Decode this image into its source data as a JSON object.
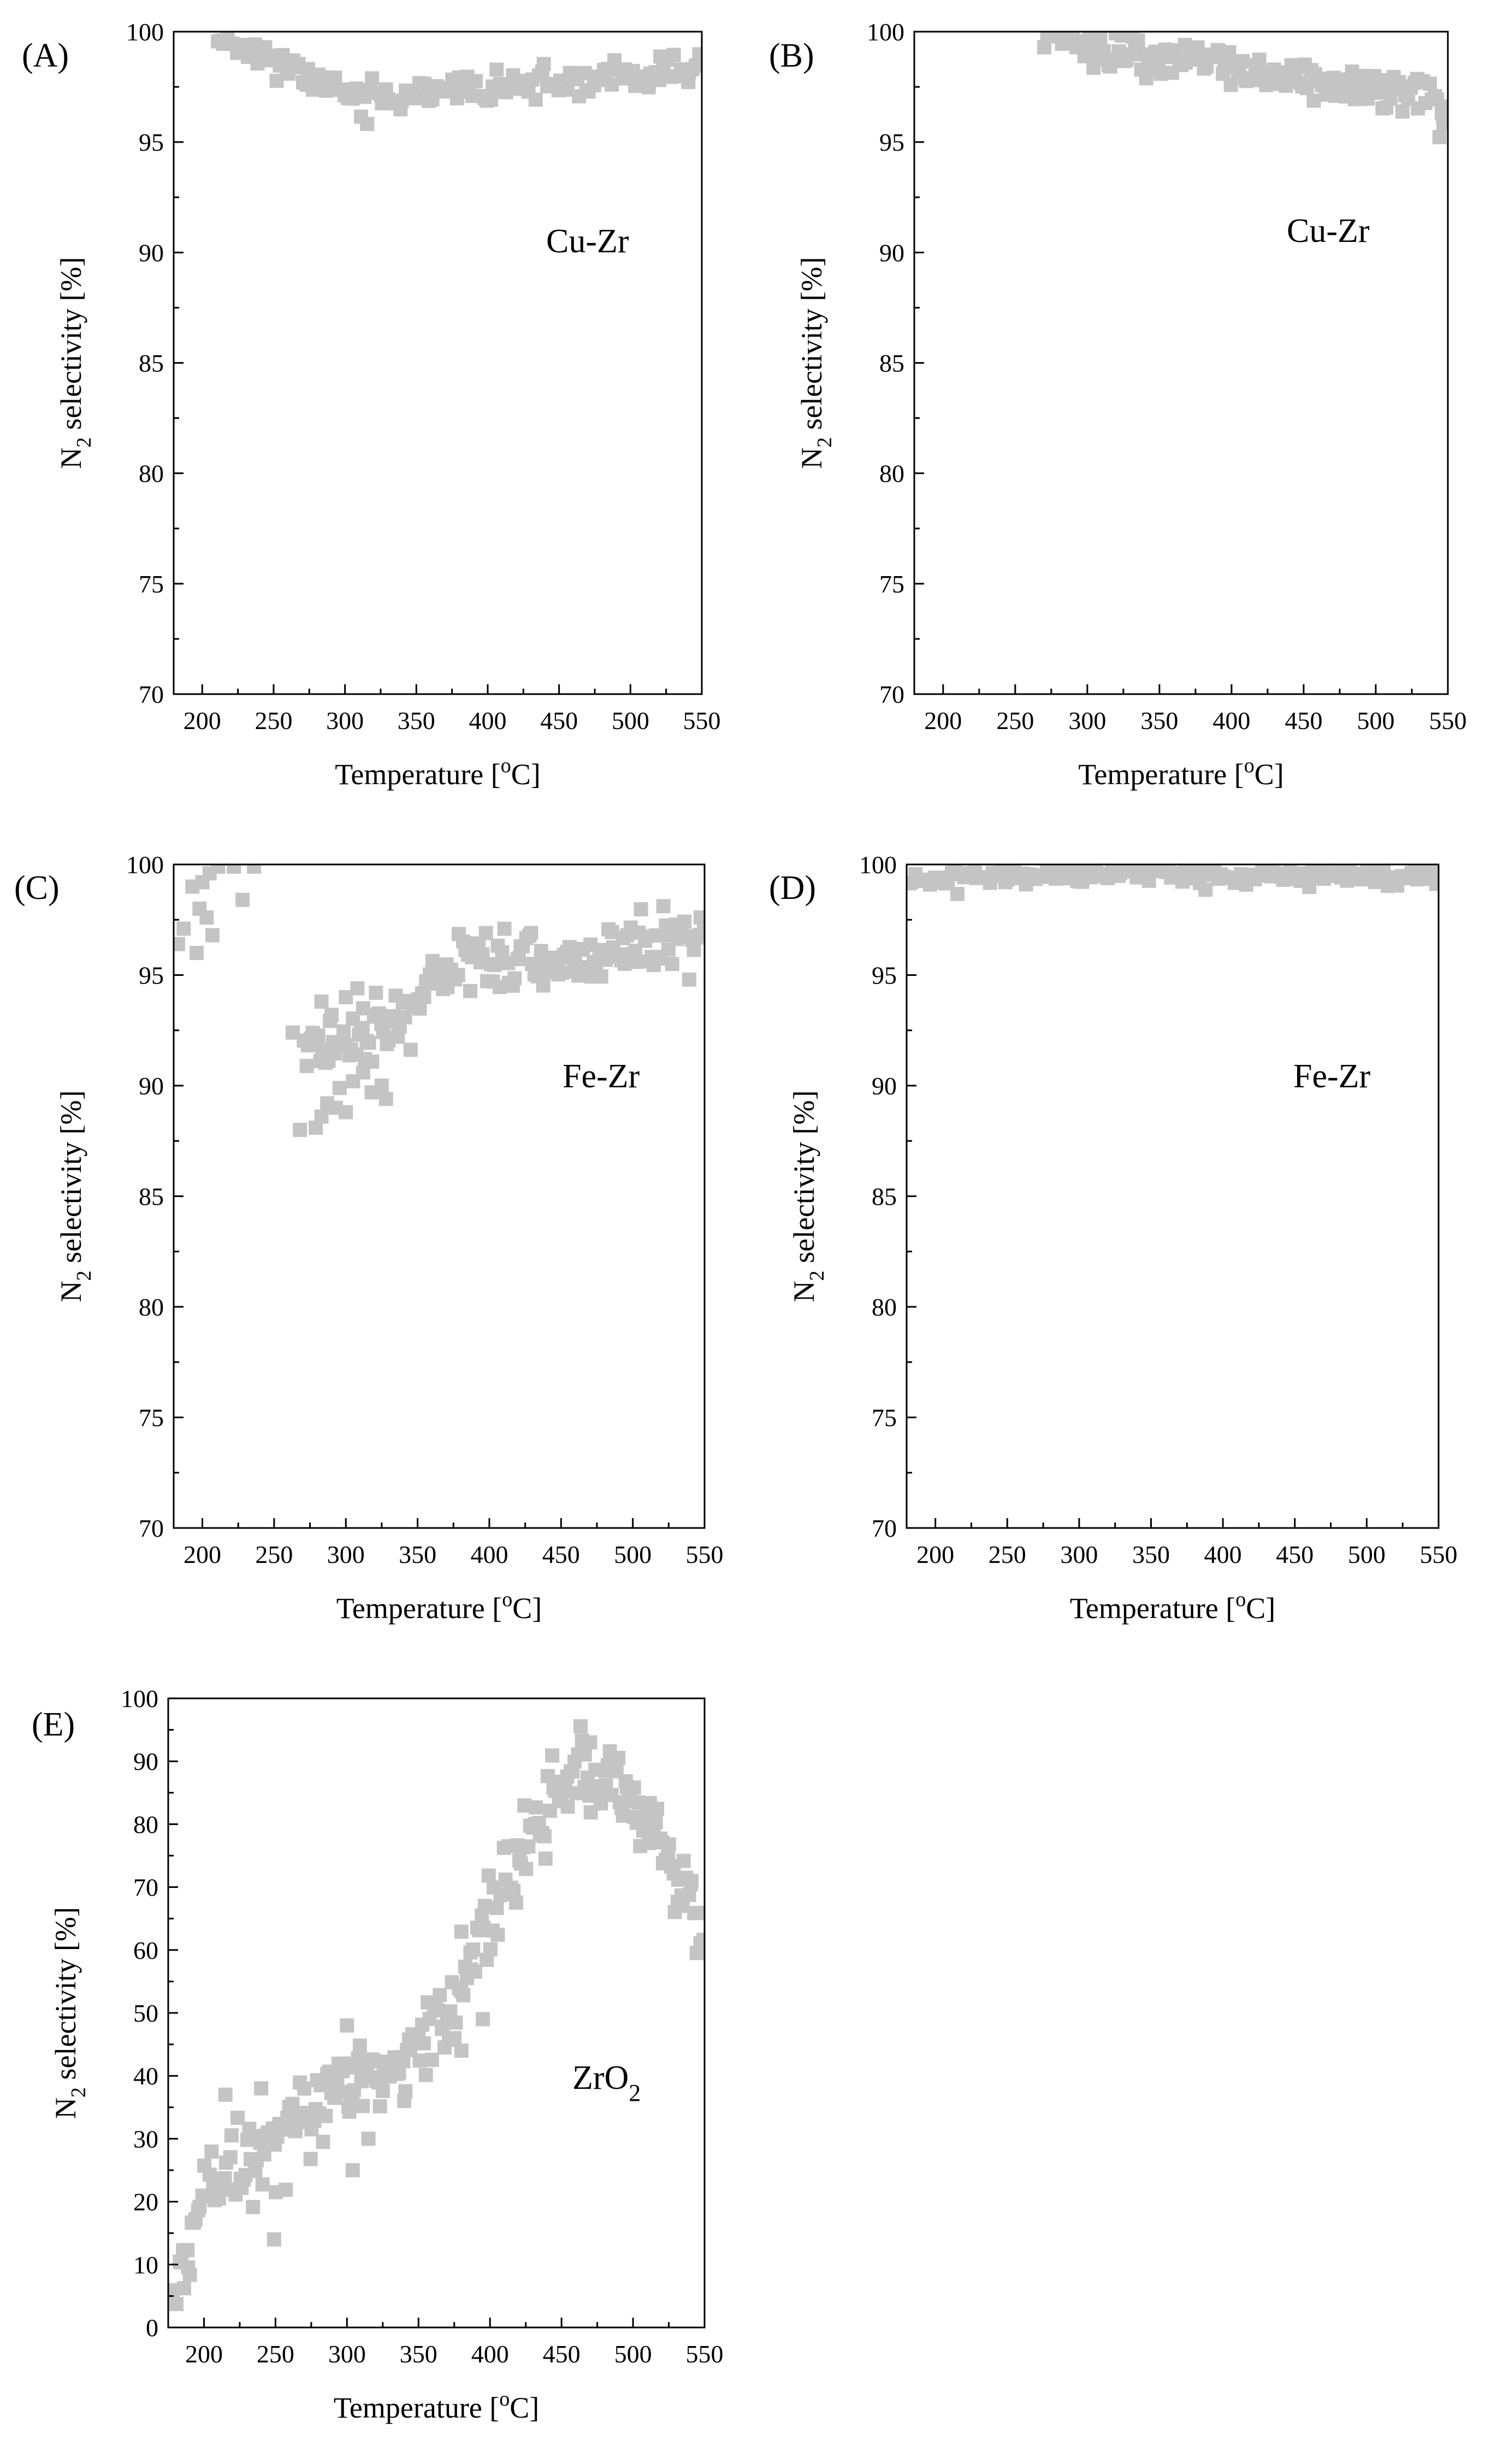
{
  "figure": {
    "background": "#ffffff",
    "marker_color": "#c4c4c4"
  },
  "chart_data": [
    {
      "panel_label": "(A)",
      "type": "scatter",
      "annotation": "Cu-Zr",
      "xlabel": {
        "main": "Temperature [",
        "sup": "o",
        "tail": "C]"
      },
      "ylabel": {
        "main": "N",
        "sub": "2",
        "tail": " selectivity [%]"
      },
      "xlim": [
        180,
        550
      ],
      "ylim": [
        70,
        100
      ],
      "xticks": [
        200,
        250,
        300,
        350,
        400,
        450,
        500,
        550
      ],
      "yticks": [
        70,
        75,
        80,
        85,
        90,
        95,
        100
      ],
      "xtick_labels": [
        "200",
        "250",
        "300",
        "350",
        "400",
        "450",
        "500",
        "550"
      ],
      "ytick_labels": [
        "70",
        "75",
        "80",
        "85",
        "90",
        "95",
        "100"
      ],
      "series": [
        {
          "name": "Cu-Zr",
          "curve": [
            [
              210,
              99.9
            ],
            [
              240,
              99.0
            ],
            [
              270,
              98.0
            ],
            [
              300,
              97.3
            ],
            [
              330,
              97.0
            ],
            [
              350,
              97.0
            ],
            [
              380,
              97.4
            ],
            [
              420,
              97.5
            ],
            [
              460,
              97.7
            ],
            [
              500,
              97.9
            ],
            [
              550,
              98.4
            ]
          ],
          "spread": 0.35,
          "count": 150,
          "seed": 11
        }
      ]
    },
    {
      "panel_label": "(B)",
      "type": "scatter",
      "annotation": "Cu-Zr",
      "xlabel": {
        "main": "Temperature [",
        "sup": "o",
        "tail": "C]"
      },
      "ylabel": {
        "main": "N",
        "sub": "2",
        "tail": " selectivity [%]"
      },
      "xlim": [
        180,
        550
      ],
      "ylim": [
        70,
        100
      ],
      "xticks": [
        200,
        250,
        300,
        350,
        400,
        450,
        500,
        550
      ],
      "yticks": [
        70,
        75,
        80,
        85,
        90,
        95,
        100
      ],
      "xtick_labels": [
        "200",
        "250",
        "300",
        "350",
        "400",
        "450",
        "500",
        "550"
      ],
      "ytick_labels": [
        "70",
        "75",
        "80",
        "85",
        "90",
        "95",
        "100"
      ],
      "series": [
        {
          "name": "Cu-Zr",
          "curve": [
            [
              270,
              100.0
            ],
            [
              300,
              99.3
            ],
            [
              340,
              98.9
            ],
            [
              380,
              98.6
            ],
            [
              420,
              98.2
            ],
            [
              460,
              97.8
            ],
            [
              500,
              97.4
            ],
            [
              530,
              96.9
            ],
            [
              550,
              96.4
            ]
          ],
          "spread": 0.45,
          "count": 160,
          "seed": 23
        }
      ]
    },
    {
      "panel_label": "(C)",
      "type": "scatter",
      "annotation": "Fe-Zr",
      "xlabel": {
        "main": "Temperature [",
        "sup": "o",
        "tail": "C]"
      },
      "ylabel": {
        "main": "N",
        "sub": "2",
        "tail": " selectivity [%]"
      },
      "xlim": [
        180,
        550
      ],
      "ylim": [
        70,
        100
      ],
      "xticks": [
        200,
        250,
        300,
        350,
        400,
        450,
        500,
        550
      ],
      "yticks": [
        70,
        75,
        80,
        85,
        90,
        95,
        100
      ],
      "xtick_labels": [
        "200",
        "250",
        "300",
        "350",
        "400",
        "450",
        "500",
        "550"
      ],
      "ytick_labels": [
        "70",
        "75",
        "80",
        "85",
        "90",
        "95",
        "100"
      ],
      "series": [
        {
          "name": "Fe-Zr",
          "curve": [
            [
              270,
              92.0
            ],
            [
              300,
              91.6
            ],
            [
              330,
              92.6
            ],
            [
              350,
              93.8
            ],
            [
              370,
              95.0
            ],
            [
              380,
              96.0
            ],
            [
              420,
              96.0
            ],
            [
              460,
              95.8
            ],
            [
              500,
              95.9
            ],
            [
              530,
              96.5
            ],
            [
              550,
              97.0
            ]
          ],
          "spread": 0.7,
          "count": 170,
          "seed": 37
        }
      ],
      "extra_points": [
        [
          183,
          96.4
        ],
        [
          187,
          97.1
        ],
        [
          193,
          99.0
        ],
        [
          196,
          96.0
        ],
        [
          198,
          98.0
        ],
        [
          200,
          99.2
        ],
        [
          203,
          97.6
        ],
        [
          205,
          99.6
        ],
        [
          207,
          96.8
        ],
        [
          211,
          99.9
        ],
        [
          222,
          99.9
        ],
        [
          228,
          98.4
        ],
        [
          236,
          99.9
        ],
        [
          263,
          92.4
        ],
        [
          268,
          88.0
        ],
        [
          279,
          88.1
        ],
        [
          283,
          88.6
        ],
        [
          287,
          89.2
        ],
        [
          293,
          89.0
        ],
        [
          300,
          88.8
        ],
        [
          305,
          90.2
        ],
        [
          312,
          90.6
        ],
        [
          318,
          89.7
        ],
        [
          321,
          94.2
        ],
        [
          325,
          90.0
        ],
        [
          328,
          89.4
        ],
        [
          283,
          93.8
        ],
        [
          290,
          93.2
        ],
        [
          300,
          94.0
        ],
        [
          308,
          94.4
        ],
        [
          312,
          93.5
        ]
      ]
    },
    {
      "panel_label": "(D)",
      "type": "scatter",
      "annotation": "Fe-Zr",
      "xlabel": {
        "main": "Temperature [",
        "sup": "o",
        "tail": "C]"
      },
      "ylabel": {
        "main": "N",
        "sub": "2",
        "tail": " selectivity [%]"
      },
      "xlim": [
        180,
        550
      ],
      "ylim": [
        70,
        100
      ],
      "xticks": [
        200,
        250,
        300,
        350,
        400,
        450,
        500,
        550
      ],
      "yticks": [
        70,
        75,
        80,
        85,
        90,
        95,
        100
      ],
      "xtick_labels": [
        "200",
        "250",
        "300",
        "350",
        "400",
        "450",
        "500",
        "550"
      ],
      "ytick_labels": [
        "70",
        "75",
        "80",
        "85",
        "90",
        "95",
        "100"
      ],
      "series": [
        {
          "name": "Fe-Zr",
          "curve": [
            [
              180,
              99.3
            ],
            [
              250,
              99.5
            ],
            [
              300,
              99.6
            ],
            [
              350,
              99.6
            ],
            [
              400,
              99.5
            ],
            [
              450,
              99.5
            ],
            [
              500,
              99.5
            ],
            [
              550,
              99.4
            ]
          ],
          "spread": 0.2,
          "count": 170,
          "seed": 41
        }
      ]
    },
    {
      "panel_label": "(E)",
      "type": "scatter",
      "annotation": "ZrO",
      "annotation_sub": "2",
      "xlabel": {
        "main": "Temperature [",
        "sup": "o",
        "tail": "C]"
      },
      "ylabel": {
        "main": "N",
        "sub": "2",
        "tail": " selectivity [%]"
      },
      "xlim": [
        175,
        550
      ],
      "ylim": [
        0,
        100
      ],
      "xticks": [
        200,
        250,
        300,
        350,
        400,
        450,
        500,
        550
      ],
      "yticks": [
        0,
        10,
        20,
        30,
        40,
        50,
        60,
        70,
        80,
        90,
        100
      ],
      "xtick_labels": [
        "200",
        "250",
        "300",
        "350",
        "400",
        "450",
        "500",
        "550"
      ],
      "ytick_labels": [
        "0",
        "10",
        "20",
        "30",
        "40",
        "50",
        "60",
        "70",
        "80",
        "90",
        "100"
      ],
      "series": [
        {
          "name": "ZrO2",
          "curve": [
            [
              178,
              4
            ],
            [
              185,
              9
            ],
            [
              195,
              17
            ],
            [
              210,
              23
            ],
            [
              230,
              27
            ],
            [
              250,
              30
            ],
            [
              270,
              33
            ],
            [
              300,
              37
            ],
            [
              330,
              41
            ],
            [
              350,
              45
            ],
            [
              370,
              51
            ],
            [
              385,
              58
            ],
            [
              400,
              66
            ],
            [
              420,
              74
            ],
            [
              440,
              82
            ],
            [
              455,
              87
            ],
            [
              470,
              89
            ],
            [
              485,
              86
            ],
            [
              500,
              83
            ],
            [
              520,
              77
            ],
            [
              540,
              68
            ],
            [
              550,
              61
            ]
          ],
          "spread": 3.2,
          "count": 280,
          "seed": 53
        }
      ],
      "extra_points": [
        [
          249,
          14
        ],
        [
          304,
          25
        ],
        [
          300,
          48
        ],
        [
          215,
          37
        ],
        [
          240,
          38
        ],
        [
          315,
          30
        ],
        [
          340,
          36
        ],
        [
          380,
          44
        ],
        [
          470,
          93
        ],
        [
          395,
          49
        ]
      ]
    }
  ]
}
